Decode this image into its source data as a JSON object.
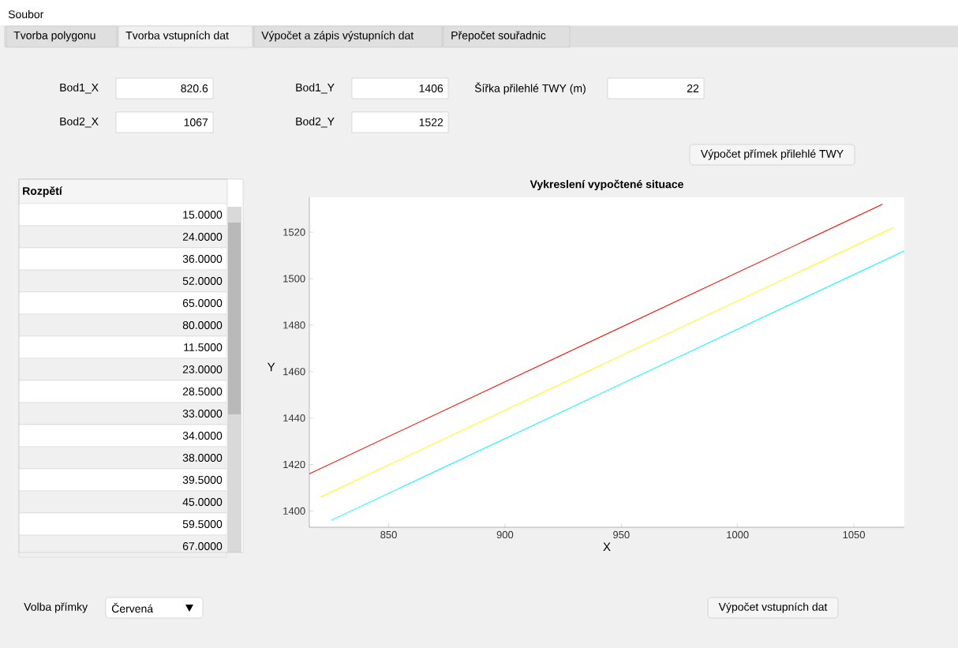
{
  "chart_data": {
    "type": "line",
    "title": "Vykreslení vypočtené situace",
    "xlabel": "X",
    "ylabel": "Y",
    "xlim": [
      815.9,
      1071.7
    ],
    "ylim": [
      1393,
      1535
    ],
    "xticks": [
      850,
      900,
      950,
      1000,
      1050
    ],
    "yticks": [
      1400,
      1420,
      1440,
      1460,
      1480,
      1500,
      1520
    ],
    "series": [
      {
        "color": "#ff0000",
        "x": [
          815.9,
          1062.3
        ],
        "values": [
          1416,
          1532
        ]
      },
      {
        "color": "#ffff00",
        "x": [
          820.6,
          1067
        ],
        "values": [
          1406,
          1522
        ]
      },
      {
        "color": "#00ffff",
        "x": [
          825.3,
          1071.7
        ],
        "values": [
          1396,
          1512
        ]
      }
    ],
    "annotations": [
      "Soubor",
      "Tvorba polygonu",
      "Tvorba vstupních dat",
      "Výpočet a zápis výstupních dat",
      "Přepočet souřadnic",
      "Bod1_X",
      "820.6",
      "Bod2_X",
      "1067",
      "Bod1_Y",
      "1406",
      "Bod2_Y",
      "1522",
      "Šířka přilehlé TWY (m)",
      "22",
      "Výpočet přímek přilehlé TWY",
      "Rozpětí",
      "15.0000",
      "24.0000",
      "36.0000",
      "52.0000",
      "65.0000",
      "80.0000",
      "11.5000",
      "23.0000",
      "28.5000",
      "33.0000",
      "34.0000",
      "38.0000",
      "39.5000",
      "45.0000",
      "59.5000",
      "67.0000",
      "Volba přímky",
      "Červená",
      "Výpočet vstupních dat"
    ]
  }
}
